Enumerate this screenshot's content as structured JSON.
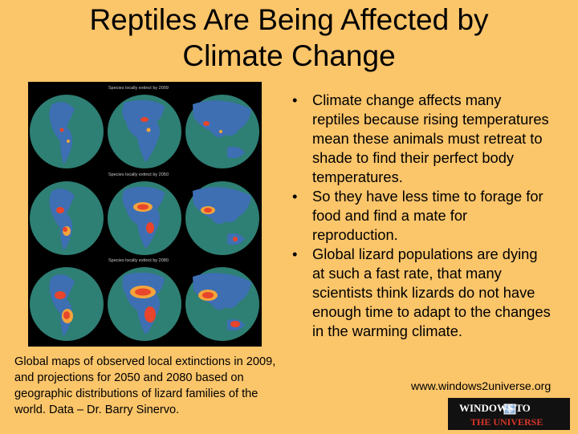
{
  "slide": {
    "title_line1": "Reptiles Are Being Affected by",
    "title_line2": "Climate Change"
  },
  "figure": {
    "row_labels": [
      "Species locally extinct by 2009",
      "Species locally extinct by 2050",
      "Species locally extinct by 2080"
    ],
    "colors": {
      "ocean": "#2E7F74",
      "land": "#3E6FB3",
      "hot": "#E8452B",
      "warm": "#F4A43A"
    }
  },
  "bullets": [
    [
      "Climate change affects many",
      "reptiles because rising temperatures",
      "mean these animals must retreat to",
      "shade to find their perfect body",
      "temperatures."
    ],
    [
      "So they have less time to forage for",
      "food and find a mate for",
      "reproduction."
    ],
    [
      "Global lizard populations are dying",
      "at such a fast rate, that many",
      "scientists think lizards do not have",
      "enough time to adapt to the changes",
      "in the warming climate."
    ]
  ],
  "caption": [
    "Global maps of observed local extinctions in 2009,",
    "and projections for 2050 and 2080 based on",
    "geographic distributions of lizard families of the",
    "world. Data – Dr. Barry Sinervo."
  ],
  "source": {
    "url": "www.windows2universe.org",
    "logo_line1": "WINDOWS TO",
    "logo_line2": "THE UNIVERSE"
  }
}
